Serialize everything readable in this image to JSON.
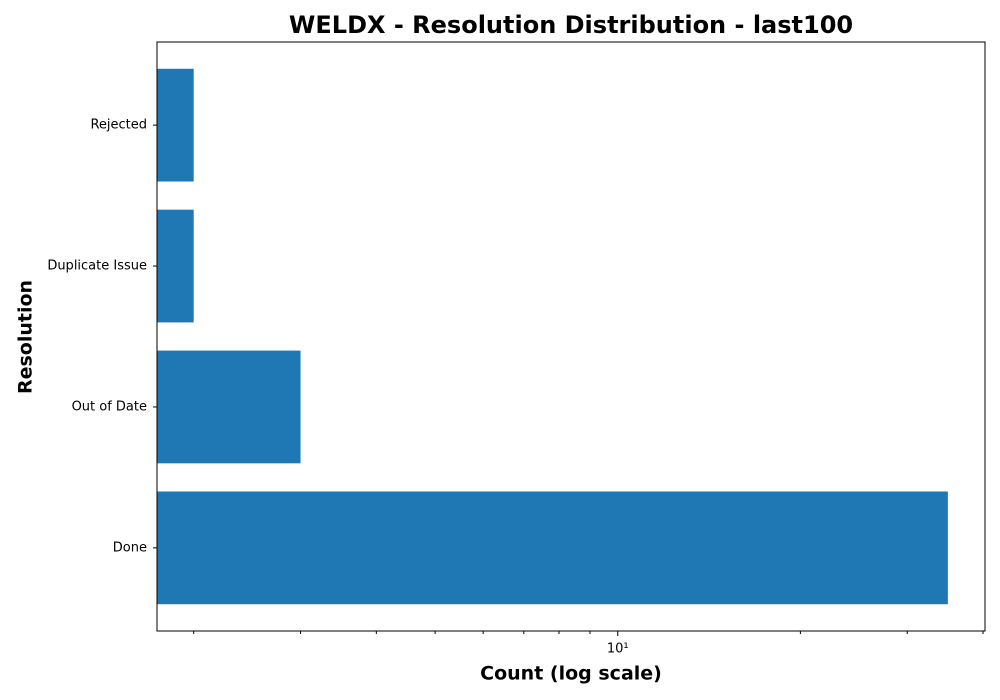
{
  "chart_data": {
    "type": "barh",
    "title": "WELDX - Resolution Distribution - last100",
    "xlabel": "Count (log scale)",
    "ylabel": "Resolution",
    "categories": [
      "Done",
      "Out of Date",
      "Duplicate Issue",
      "Rejected"
    ],
    "values": [
      35,
      3,
      2,
      2
    ],
    "color": "#1f77b4",
    "xscale": "log",
    "xlim": [
      1.74,
      40.3
    ],
    "xticks": [
      {
        "value": 10,
        "label": "10¹"
      }
    ],
    "xticks_minor": [
      2,
      3,
      4,
      5,
      6,
      7,
      8,
      9,
      20,
      30,
      40
    ]
  }
}
